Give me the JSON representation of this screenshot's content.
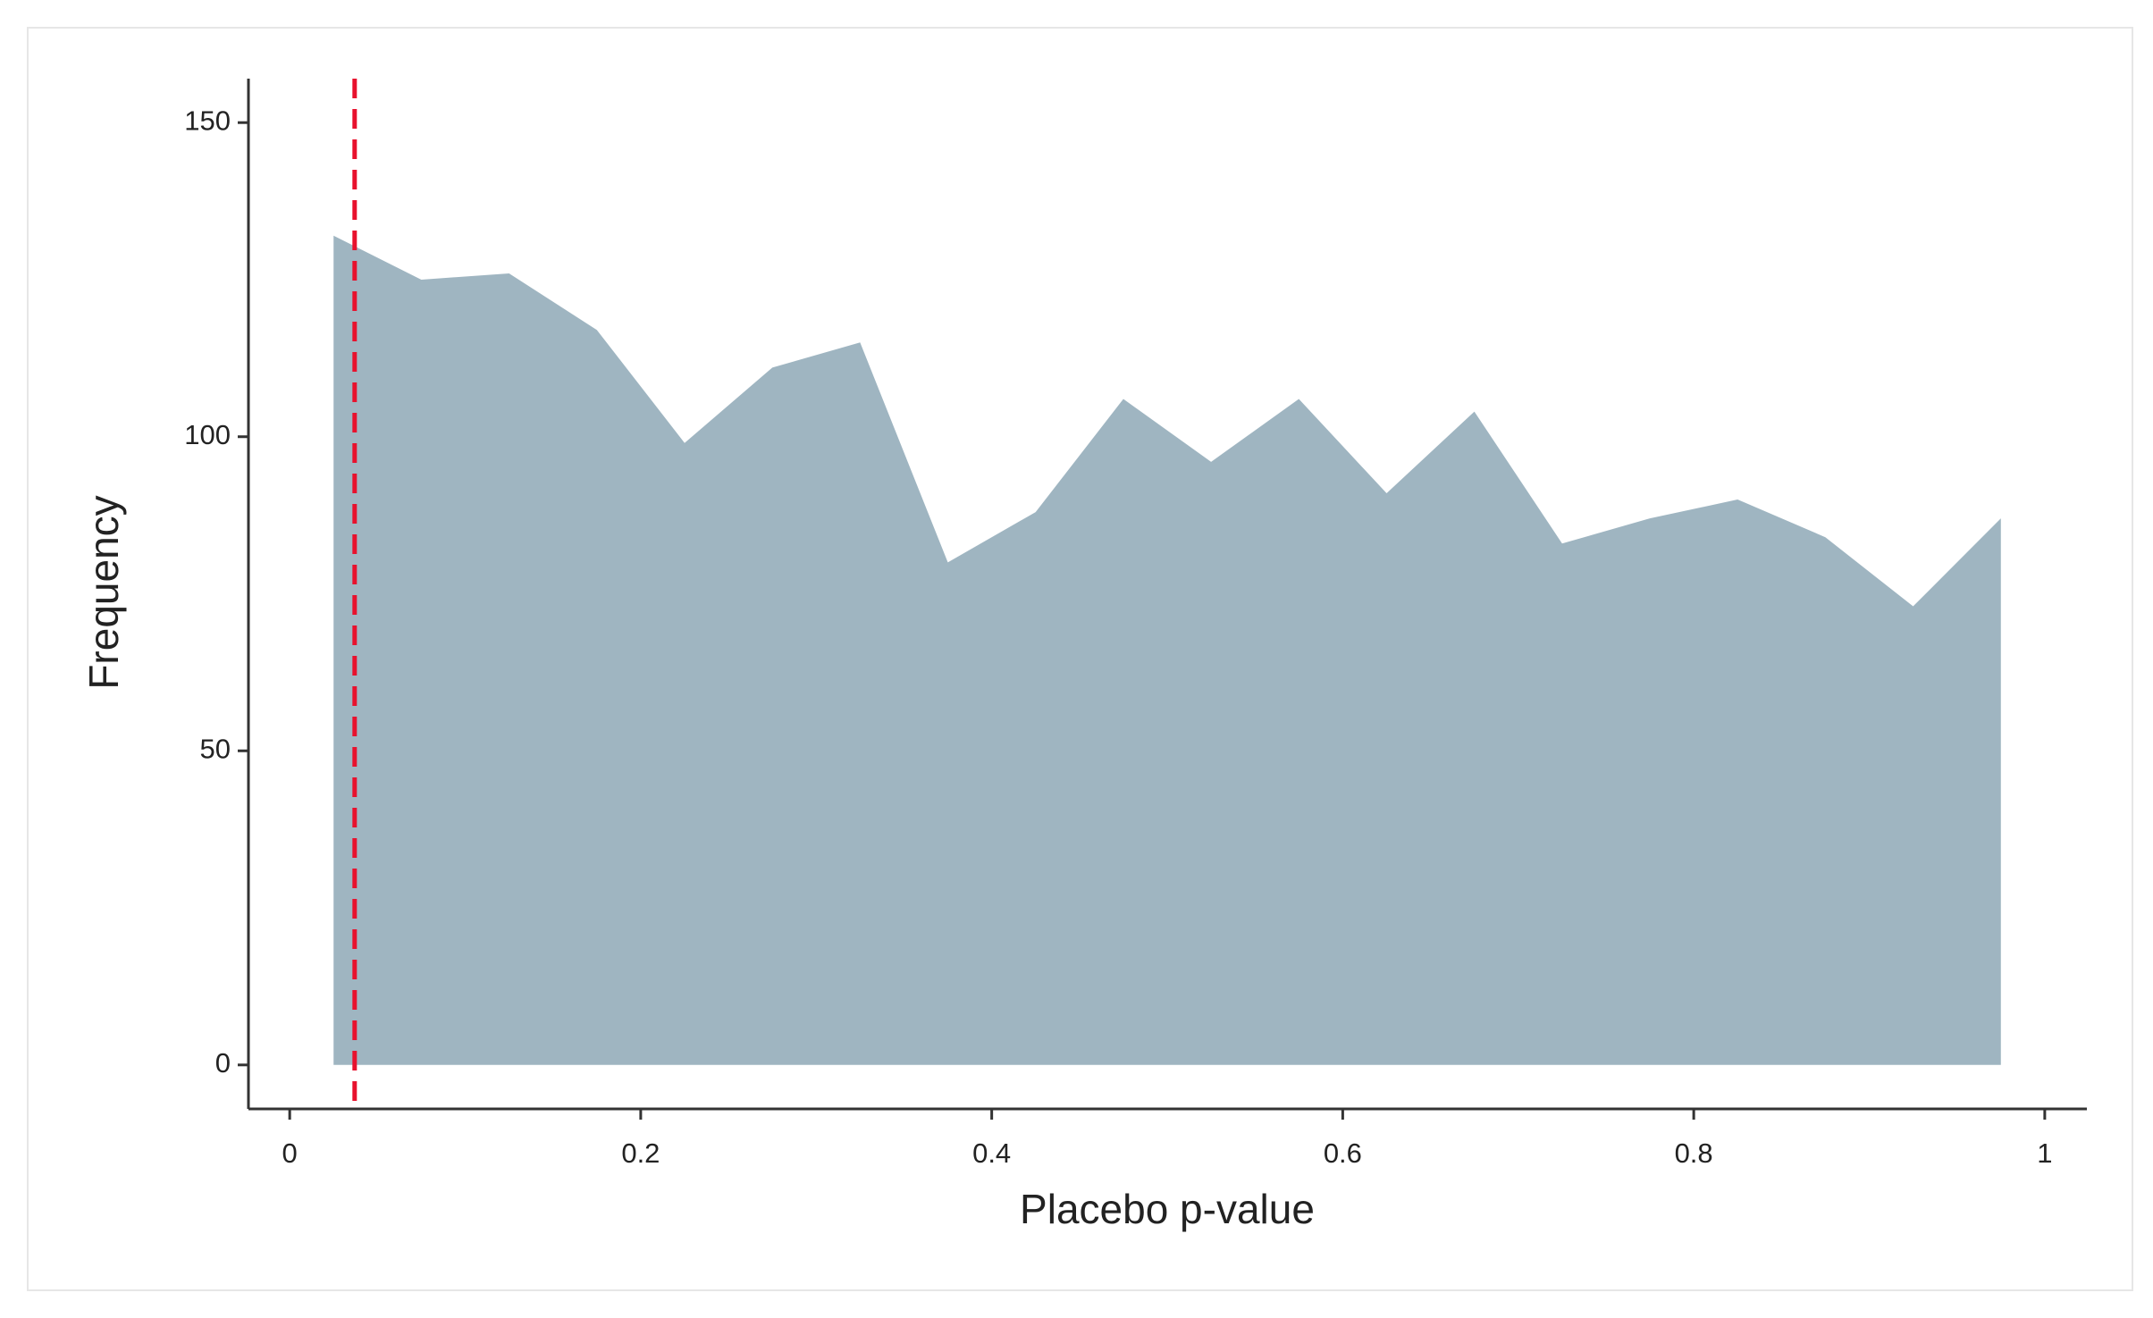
{
  "chart_data": {
    "type": "area",
    "x_label": "Placebo p-value",
    "y_label": "Frequency",
    "x": [
      0.025,
      0.075,
      0.125,
      0.175,
      0.225,
      0.275,
      0.325,
      0.375,
      0.425,
      0.475,
      0.525,
      0.575,
      0.625,
      0.675,
      0.725,
      0.775,
      0.825,
      0.875,
      0.925,
      0.975
    ],
    "values": [
      132,
      125,
      126,
      117,
      99,
      111,
      115,
      80,
      88,
      106,
      96,
      106,
      91,
      104,
      83,
      87,
      90,
      84,
      73,
      87
    ],
    "color": "#9fb5c1",
    "xlim": [
      -0.0235,
      1.024
    ],
    "ylim": [
      -7,
      157
    ],
    "xticks": [
      0,
      0.2,
      0.4,
      0.6,
      0.8,
      1
    ],
    "yticks": [
      0,
      50,
      100,
      150
    ],
    "reference_line": {
      "x": 0.037,
      "color": "#e8112d"
    }
  }
}
